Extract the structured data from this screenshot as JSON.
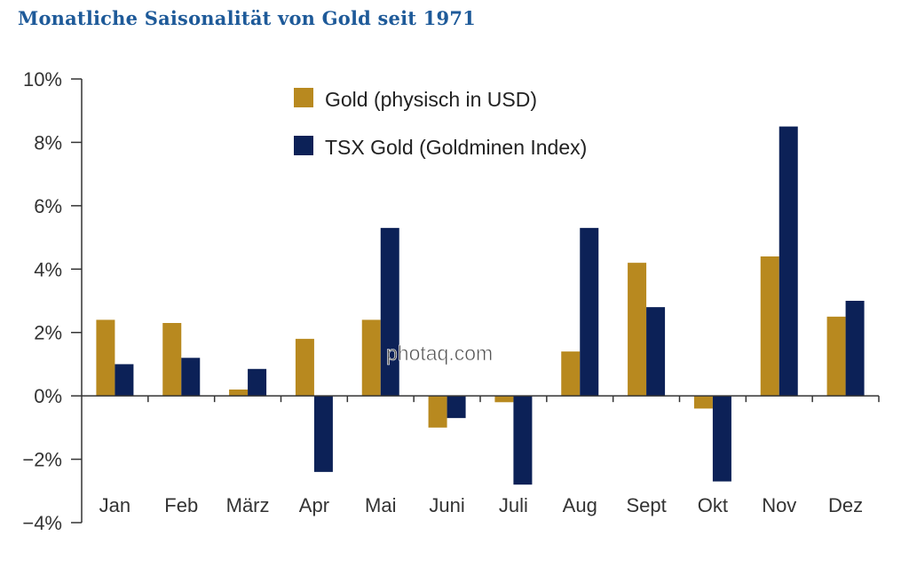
{
  "watermark": "photaq.com",
  "colors": {
    "gold": "#b8891f",
    "tsx": "#0c2157",
    "title": "#1e5a99",
    "axis": "#333333"
  },
  "chart_data": {
    "type": "bar",
    "title": "Monatliche Saisonalität von Gold seit 1971",
    "xlabel": "",
    "ylabel": "",
    "ylim": [
      -4,
      10
    ],
    "yticks": [
      10,
      8,
      6,
      4,
      2,
      0,
      -2,
      -4
    ],
    "ytick_labels": [
      "10%",
      "8%",
      "6%",
      "4%",
      "2%",
      "0%",
      "−2%",
      "−4%"
    ],
    "categories": [
      "Jan",
      "Feb",
      "März",
      "Apr",
      "Mai",
      "Juni",
      "Juli",
      "Aug",
      "Sept",
      "Okt",
      "Nov",
      "Dez"
    ],
    "legend_position": "top-center",
    "grid": false,
    "series": [
      {
        "name": "Gold (physisch in USD)",
        "color": "#b8891f",
        "values": [
          2.4,
          2.3,
          0.2,
          1.8,
          2.4,
          -1.0,
          -0.2,
          1.4,
          4.2,
          -0.4,
          4.4,
          2.5
        ]
      },
      {
        "name": "TSX Gold (Goldminen Index)",
        "color": "#0c2157",
        "values": [
          1.0,
          1.2,
          0.85,
          -2.4,
          5.3,
          -0.7,
          -2.8,
          5.3,
          2.8,
          -2.7,
          8.5,
          3.0
        ]
      }
    ]
  }
}
